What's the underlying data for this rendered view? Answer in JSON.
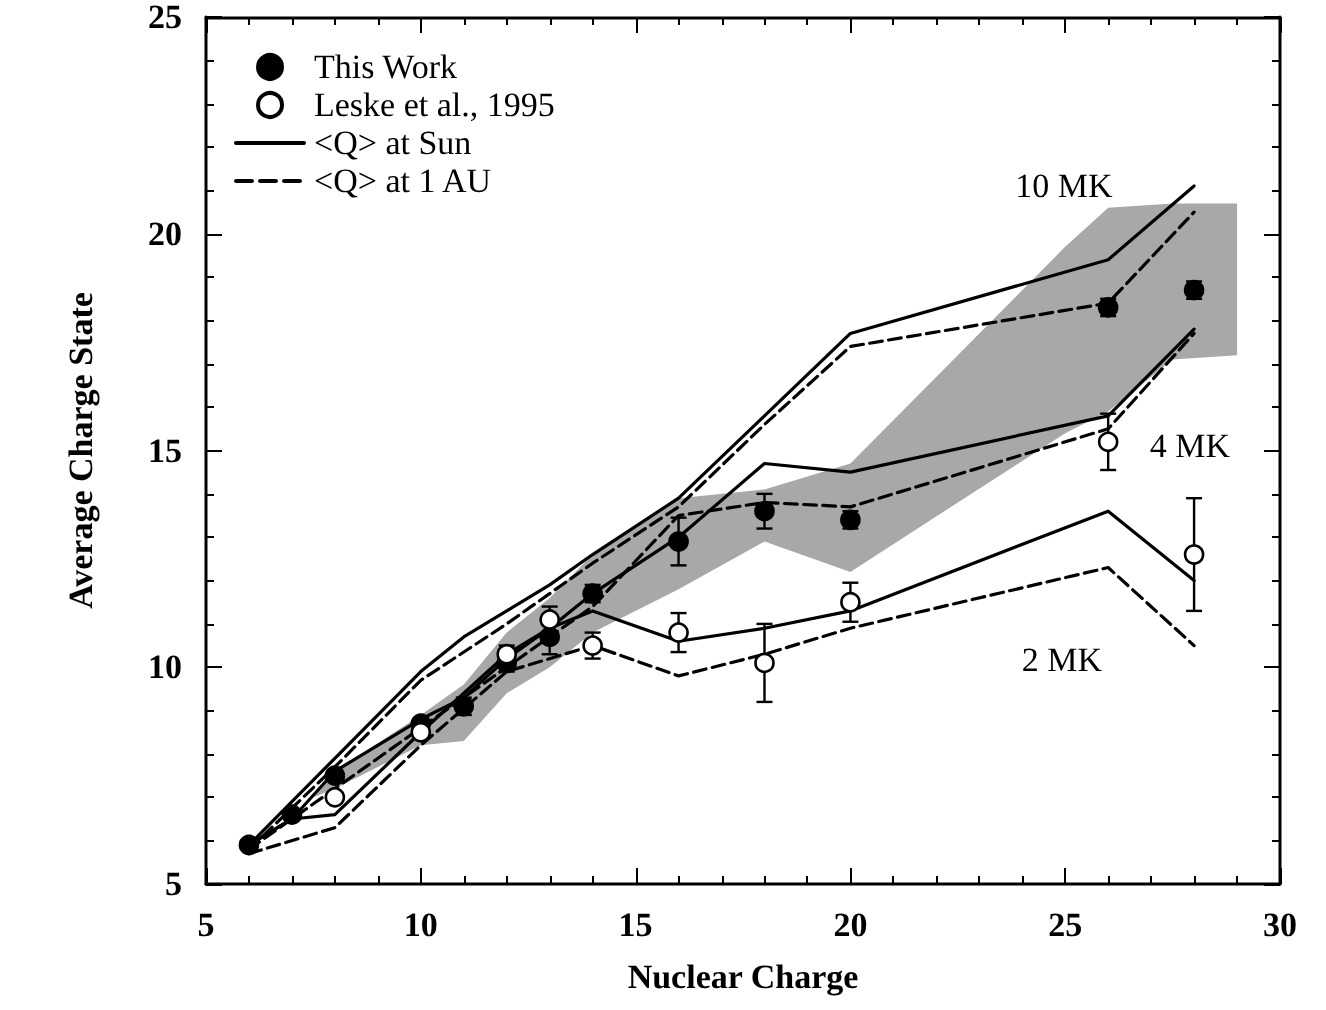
{
  "chart_data": {
    "type": "line",
    "xlabel": "Nuclear Charge",
    "ylabel": "Average Charge State",
    "xlim": [
      5,
      30
    ],
    "ylim": [
      5,
      25
    ],
    "xticks": [
      5,
      10,
      15,
      20,
      25,
      30
    ],
    "yticks": [
      5,
      10,
      15,
      20,
      25
    ],
    "grid": false,
    "legend": "top left",
    "annotations": [
      "10 MK",
      "4 MK",
      "2 MK"
    ],
    "series": [
      {
        "type": "area",
        "color": "#a8a8a8",
        "x": [
          7.5,
          8,
          10,
          11,
          12,
          13,
          14,
          16,
          18,
          20,
          25,
          26,
          27.5,
          29
        ],
        "values": [
          null,
          null,
          null,
          null,
          null,
          null,
          null,
          null,
          null,
          null,
          null,
          null,
          null,
          null
        ],
        "lower": [
          7.0,
          7.2,
          8.2,
          8.3,
          9.4,
          10.0,
          10.8,
          11.8,
          12.9,
          12.2,
          15.4,
          15.9,
          17.1,
          17.2
        ],
        "upper": [
          7.0,
          7.6,
          8.9,
          9.6,
          10.8,
          11.6,
          12.6,
          13.9,
          14.1,
          14.7,
          19.7,
          20.6,
          20.7,
          20.7
        ]
      },
      {
        "name": "<Q> at Sun",
        "color": "#000000",
        "line_style": "solid",
        "x": [
          6,
          7,
          8,
          10,
          11,
          12,
          13,
          14,
          16,
          18,
          20,
          26,
          28
        ],
        "values": [
          5.9,
          6.9,
          7.9,
          9.9,
          10.7,
          11.3,
          11.9,
          12.6,
          13.9,
          15.8,
          17.7,
          19.4,
          21.1
        ]
      },
      {
        "name": "<Q> at 1 AU",
        "color": "#000000",
        "line_style": "dashed",
        "x": [
          6,
          8,
          10,
          12,
          14,
          16,
          18,
          20,
          26,
          28
        ],
        "values": [
          5.8,
          7.7,
          9.7,
          11.0,
          12.4,
          13.7,
          15.6,
          17.4,
          18.4,
          20.5
        ]
      },
      {
        "color": "#000000",
        "line_style": "solid",
        "x": [
          6,
          7,
          8,
          10,
          11,
          12,
          13,
          14,
          16,
          18,
          20,
          26,
          28
        ],
        "values": [
          5.9,
          6.5,
          7.6,
          8.8,
          9.3,
          10.2,
          10.9,
          11.7,
          13.0,
          14.7,
          14.5,
          15.8,
          17.8
        ]
      },
      {
        "color": "#000000",
        "line_style": "dashed",
        "x": [
          6,
          8,
          10,
          12,
          14,
          16,
          18,
          20,
          26,
          28
        ],
        "values": [
          5.8,
          7.2,
          8.6,
          10.0,
          11.4,
          13.5,
          13.8,
          13.7,
          15.5,
          17.7
        ]
      },
      {
        "color": "#000000",
        "line_style": "solid",
        "x": [
          6,
          7,
          8,
          10,
          12,
          13,
          14,
          16,
          18,
          20,
          26,
          28
        ],
        "values": [
          5.9,
          6.5,
          6.6,
          8.5,
          10.3,
          10.9,
          11.3,
          10.6,
          10.9,
          11.3,
          13.6,
          12.0
        ]
      },
      {
        "color": "#000000",
        "line_style": "dashed",
        "x": [
          6,
          8,
          10,
          12,
          14,
          16,
          18,
          20,
          26,
          28
        ],
        "values": [
          5.7,
          6.3,
          8.2,
          9.9,
          10.5,
          9.8,
          10.3,
          10.9,
          12.3,
          10.5
        ]
      },
      {
        "type": "scatter",
        "marker": "circle",
        "name": "This Work",
        "color": "#000000",
        "x": [
          6,
          7,
          8,
          10,
          11,
          12,
          13,
          14,
          16,
          18,
          20,
          26,
          28
        ],
        "values": [
          5.9,
          6.6,
          7.5,
          8.7,
          9.1,
          10.1,
          10.7,
          11.7,
          12.9,
          13.6,
          13.4,
          18.3,
          18.7
        ],
        "errors": [
          null,
          null,
          null,
          null,
          0.2,
          0.2,
          0.4,
          0.2,
          0.55,
          0.4,
          0.2,
          0.2,
          0.2
        ]
      },
      {
        "type": "scatter",
        "marker": "circle",
        "name": "Leske et al., 1995",
        "color": "#ffffff",
        "x": [
          8,
          10,
          12,
          13,
          14,
          16,
          18,
          20,
          26,
          28
        ],
        "values": [
          7.0,
          8.5,
          10.3,
          11.1,
          10.5,
          10.8,
          10.1,
          11.5,
          15.2,
          12.6
        ],
        "errors": [
          null,
          null,
          0.2,
          0.3,
          0.3,
          0.45,
          0.9,
          0.45,
          0.65,
          [
            11.3,
            13.9
          ]
        ]
      }
    ]
  }
}
